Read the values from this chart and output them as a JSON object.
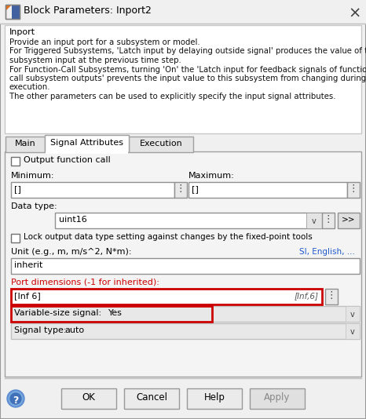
{
  "title": "Block Parameters: Inport2",
  "bg_color": "#f0f0f0",
  "white": "#ffffff",
  "light_gray": "#e8e8e8",
  "mid_gray": "#d0d0d0",
  "dark_gray": "#909090",
  "border_color": "#a0a0a0",
  "red_color": "#cc0000",
  "link_color": "#1f5bcc",
  "text_color": "#000000",
  "title_text": "Block Parameters: Inport2",
  "desc_bold": "Inport",
  "desc_lines": [
    "Provide an input port for a subsystem or model.",
    "For Triggered Subsystems, 'Latch input by delaying outside signal' produces the value of the",
    "subsystem input at the previous time step.",
    "For Function-Call Subsystems, turning 'On' the 'Latch input for feedback signals of function-",
    "call subsystem outputs' prevents the input value to this subsystem from changing during its",
    "execution.",
    "The other parameters can be used to explicitly specify the input signal attributes."
  ],
  "tabs": [
    "Main",
    "Signal Attributes",
    "Execution"
  ],
  "active_tab_idx": 1,
  "min_value": "[]",
  "max_value": "[]",
  "data_type_value": "uint16",
  "unit_value": "inherit",
  "port_dim_value": "[Inf 6]",
  "port_dim_hint": "[Inf,6]",
  "var_size_value": "Yes",
  "signal_type_value": "auto",
  "link_text": "SI, English, ...",
  "btn_labels": [
    "OK",
    "Cancel",
    "Help",
    "Apply"
  ]
}
